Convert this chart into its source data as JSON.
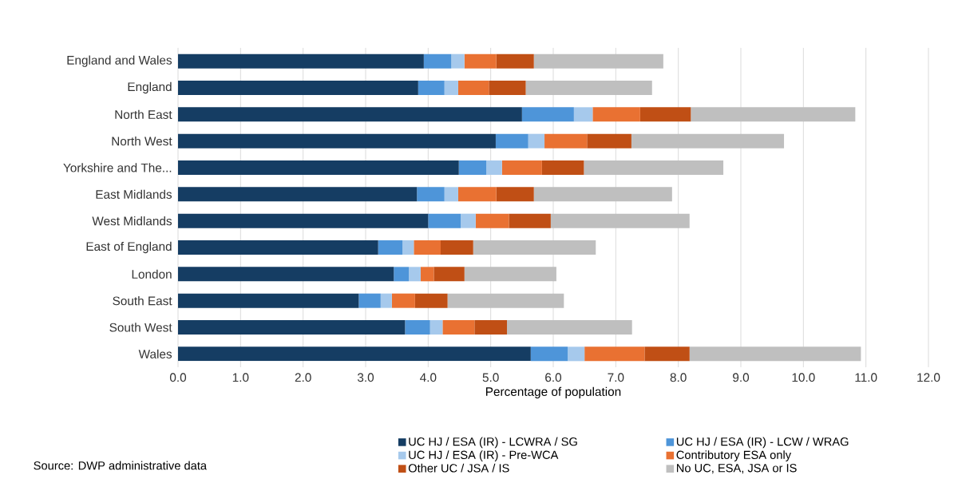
{
  "chart_data": {
    "type": "bar",
    "orientation": "horizontal",
    "stacked": true,
    "xlabel": "Percentage of population",
    "categories": [
      "England and Wales",
      "England",
      "North East",
      "North West",
      "Yorkshire and The...",
      "East Midlands",
      "West Midlands",
      "East of England",
      "London",
      "South East",
      "South West",
      "Wales"
    ],
    "series": [
      {
        "name": "UC HJ / ESA (IR) - LCWRA / SG",
        "color": "#153d63",
        "values": [
          3.93,
          3.84,
          5.5,
          5.08,
          4.49,
          3.82,
          4.0,
          3.2,
          3.45,
          2.89,
          3.63,
          5.64
        ]
      },
      {
        "name": "UC HJ / ESA (IR) - LCW / WRAG",
        "color": "#4e95d9",
        "values": [
          0.44,
          0.42,
          0.83,
          0.52,
          0.44,
          0.44,
          0.52,
          0.39,
          0.24,
          0.35,
          0.4,
          0.59
        ]
      },
      {
        "name": "UC HJ / ESA (IR) - Pre-WCA",
        "color": "#a6c9ec",
        "values": [
          0.21,
          0.22,
          0.3,
          0.26,
          0.25,
          0.22,
          0.24,
          0.18,
          0.19,
          0.18,
          0.2,
          0.27
        ]
      },
      {
        "name": "Contributory ESA only",
        "color": "#e97132",
        "values": [
          0.51,
          0.49,
          0.76,
          0.68,
          0.64,
          0.61,
          0.53,
          0.43,
          0.21,
          0.37,
          0.51,
          0.96
        ]
      },
      {
        "name": "Other UC / JSA / IS",
        "color": "#c04f15",
        "values": [
          0.6,
          0.59,
          0.81,
          0.71,
          0.67,
          0.6,
          0.67,
          0.52,
          0.49,
          0.52,
          0.52,
          0.72
        ]
      },
      {
        "name": "No UC, ESA, JSA or IS",
        "color": "#bfbfbf",
        "values": [
          2.07,
          2.02,
          2.63,
          2.44,
          2.23,
          2.21,
          2.22,
          1.96,
          1.47,
          1.86,
          2.0,
          2.74
        ]
      }
    ],
    "xlim": [
      0,
      12
    ],
    "xticks": [
      {
        "value": 0,
        "label": "0.0"
      },
      {
        "value": 1,
        "label": "1.0"
      },
      {
        "value": 2,
        "label": "2.0"
      },
      {
        "value": 3,
        "label": "3.0"
      },
      {
        "value": 4,
        "label": "4.0"
      },
      {
        "value": 5,
        "label": "5.0"
      },
      {
        "value": 6,
        "label": "6.0"
      },
      {
        "value": 7,
        "label": "7.0"
      },
      {
        "value": 8,
        "label": "8.0"
      },
      {
        "value": 9,
        "label": "9.0"
      },
      {
        "value": 10,
        "label": "10.0"
      },
      {
        "value": 11,
        "label": "11.0"
      },
      {
        "value": 12,
        "label": "12.0"
      }
    ],
    "grid": "x",
    "legend": "bottom",
    "annotations": [
      "Source: DWP administrative data"
    ]
  }
}
